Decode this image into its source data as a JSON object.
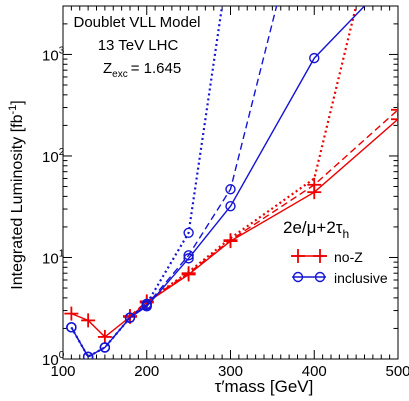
{
  "chart_data": {
    "type": "line",
    "title": "Doublet VLL Model",
    "subtitle": "13 TeV LHC",
    "annotation_prefix": "Z",
    "annotation_sub": "exc",
    "annotation_value": "= 1.645",
    "xlabel": "τ′mass  [GeV]",
    "ylabel_main": "Integrated Luminosity [fb",
    "ylabel_sup": "-1",
    "ylabel_close": "]",
    "xlim": [
      100,
      500
    ],
    "ylim": [
      1,
      3000
    ],
    "yscale": "log",
    "x_ticks": [
      100,
      200,
      300,
      400,
      500
    ],
    "x_tick_labels": [
      "100",
      "200",
      "300",
      "400",
      "500"
    ],
    "y_ticks": [
      1,
      10,
      100,
      1000
    ],
    "y_tick_bases": [
      "10",
      "10",
      "10",
      "10"
    ],
    "y_tick_exps": [
      "0",
      "1",
      "2",
      "3"
    ],
    "legend": {
      "position": "right",
      "title_main": "2e/μ+2τ",
      "title_sub": "h",
      "entries": [
        "no-Z",
        "inclusive"
      ]
    },
    "colors": {
      "red": "#ee0000",
      "blue": "#1515d6"
    },
    "series": [
      {
        "color": "red",
        "style": "solid",
        "marker": "plus",
        "x": [
          110,
          130,
          150,
          180,
          200,
          250,
          300,
          400,
          500
        ],
        "y": [
          2.8,
          2.4,
          1.65,
          2.6,
          3.6,
          6.8,
          14.5,
          44,
          230
        ]
      },
      {
        "color": "red",
        "style": "dashed",
        "marker": "plus",
        "x": [
          180,
          200,
          250,
          300,
          400,
          500
        ],
        "y": [
          2.65,
          3.7,
          7.0,
          14.8,
          52,
          285
        ]
      },
      {
        "color": "red",
        "style": "dotted",
        "marker": "none",
        "x": [
          200,
          250,
          300,
          400,
          450
        ],
        "y": [
          3.7,
          7.2,
          15.5,
          60,
          3000
        ]
      },
      {
        "color": "blue",
        "style": "solid",
        "marker": "circle",
        "x": [
          110,
          130,
          150,
          180,
          200,
          250,
          300,
          400,
          460
        ],
        "y": [
          2.05,
          1.05,
          1.3,
          2.55,
          3.3,
          9.8,
          32,
          920,
          3000
        ]
      },
      {
        "color": "blue",
        "style": "dashed",
        "marker": "circle",
        "x": [
          110,
          130,
          150,
          180,
          200,
          250,
          300,
          355
        ],
        "y": [
          2.05,
          1.05,
          1.3,
          2.55,
          3.4,
          10.5,
          47,
          3000
        ]
      },
      {
        "color": "blue",
        "style": "dotted",
        "marker": "circle",
        "x": [
          110,
          130,
          150,
          180,
          200,
          250,
          290
        ],
        "y": [
          2.05,
          1.05,
          1.3,
          2.55,
          3.5,
          17.5,
          3000
        ]
      }
    ]
  }
}
